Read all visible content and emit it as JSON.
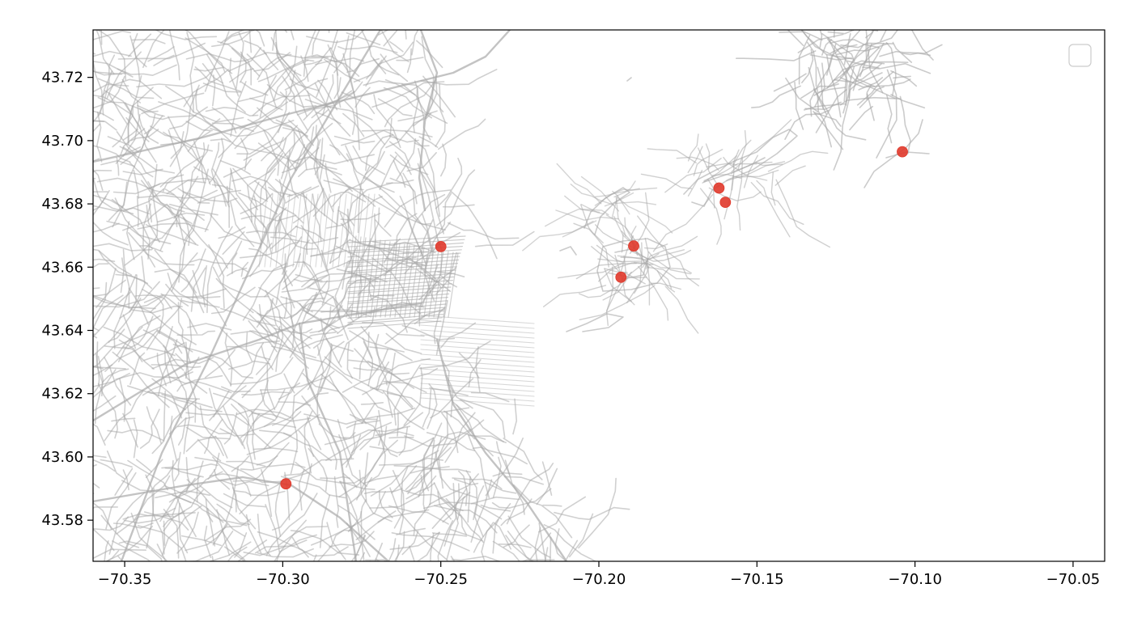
{
  "chart_data": {
    "type": "scatter",
    "title": "",
    "xlabel": "",
    "ylabel": "",
    "xlim": [
      -70.36,
      -70.04
    ],
    "ylim": [
      43.567,
      43.735
    ],
    "x_ticks": [
      -70.35,
      -70.3,
      -70.25,
      -70.2,
      -70.15,
      -70.1,
      -70.05
    ],
    "x_tick_labels": [
      "−70.35",
      "−70.30",
      "−70.25",
      "−70.20",
      "−70.15",
      "−70.10",
      "−70.05"
    ],
    "y_ticks": [
      43.58,
      43.6,
      43.62,
      43.64,
      43.66,
      43.68,
      43.7,
      43.72
    ],
    "y_tick_labels": [
      "43.58",
      "43.60",
      "43.62",
      "43.64",
      "43.66",
      "43.68",
      "43.70",
      "43.72"
    ],
    "grid": false,
    "legend": {
      "placement": "top-right",
      "entries": []
    },
    "basemap": "road-network",
    "colors": {
      "points": "#e0392b",
      "roads": "#a9a9a9",
      "axes": "#000000"
    },
    "series": [
      {
        "x": [
          -70.25,
          -70.189,
          -70.193,
          -70.162,
          -70.16,
          -70.104,
          -70.299
        ],
        "y": [
          43.6665,
          43.6667,
          43.6568,
          43.685,
          43.6805,
          43.6965,
          43.5915
        ]
      }
    ]
  }
}
